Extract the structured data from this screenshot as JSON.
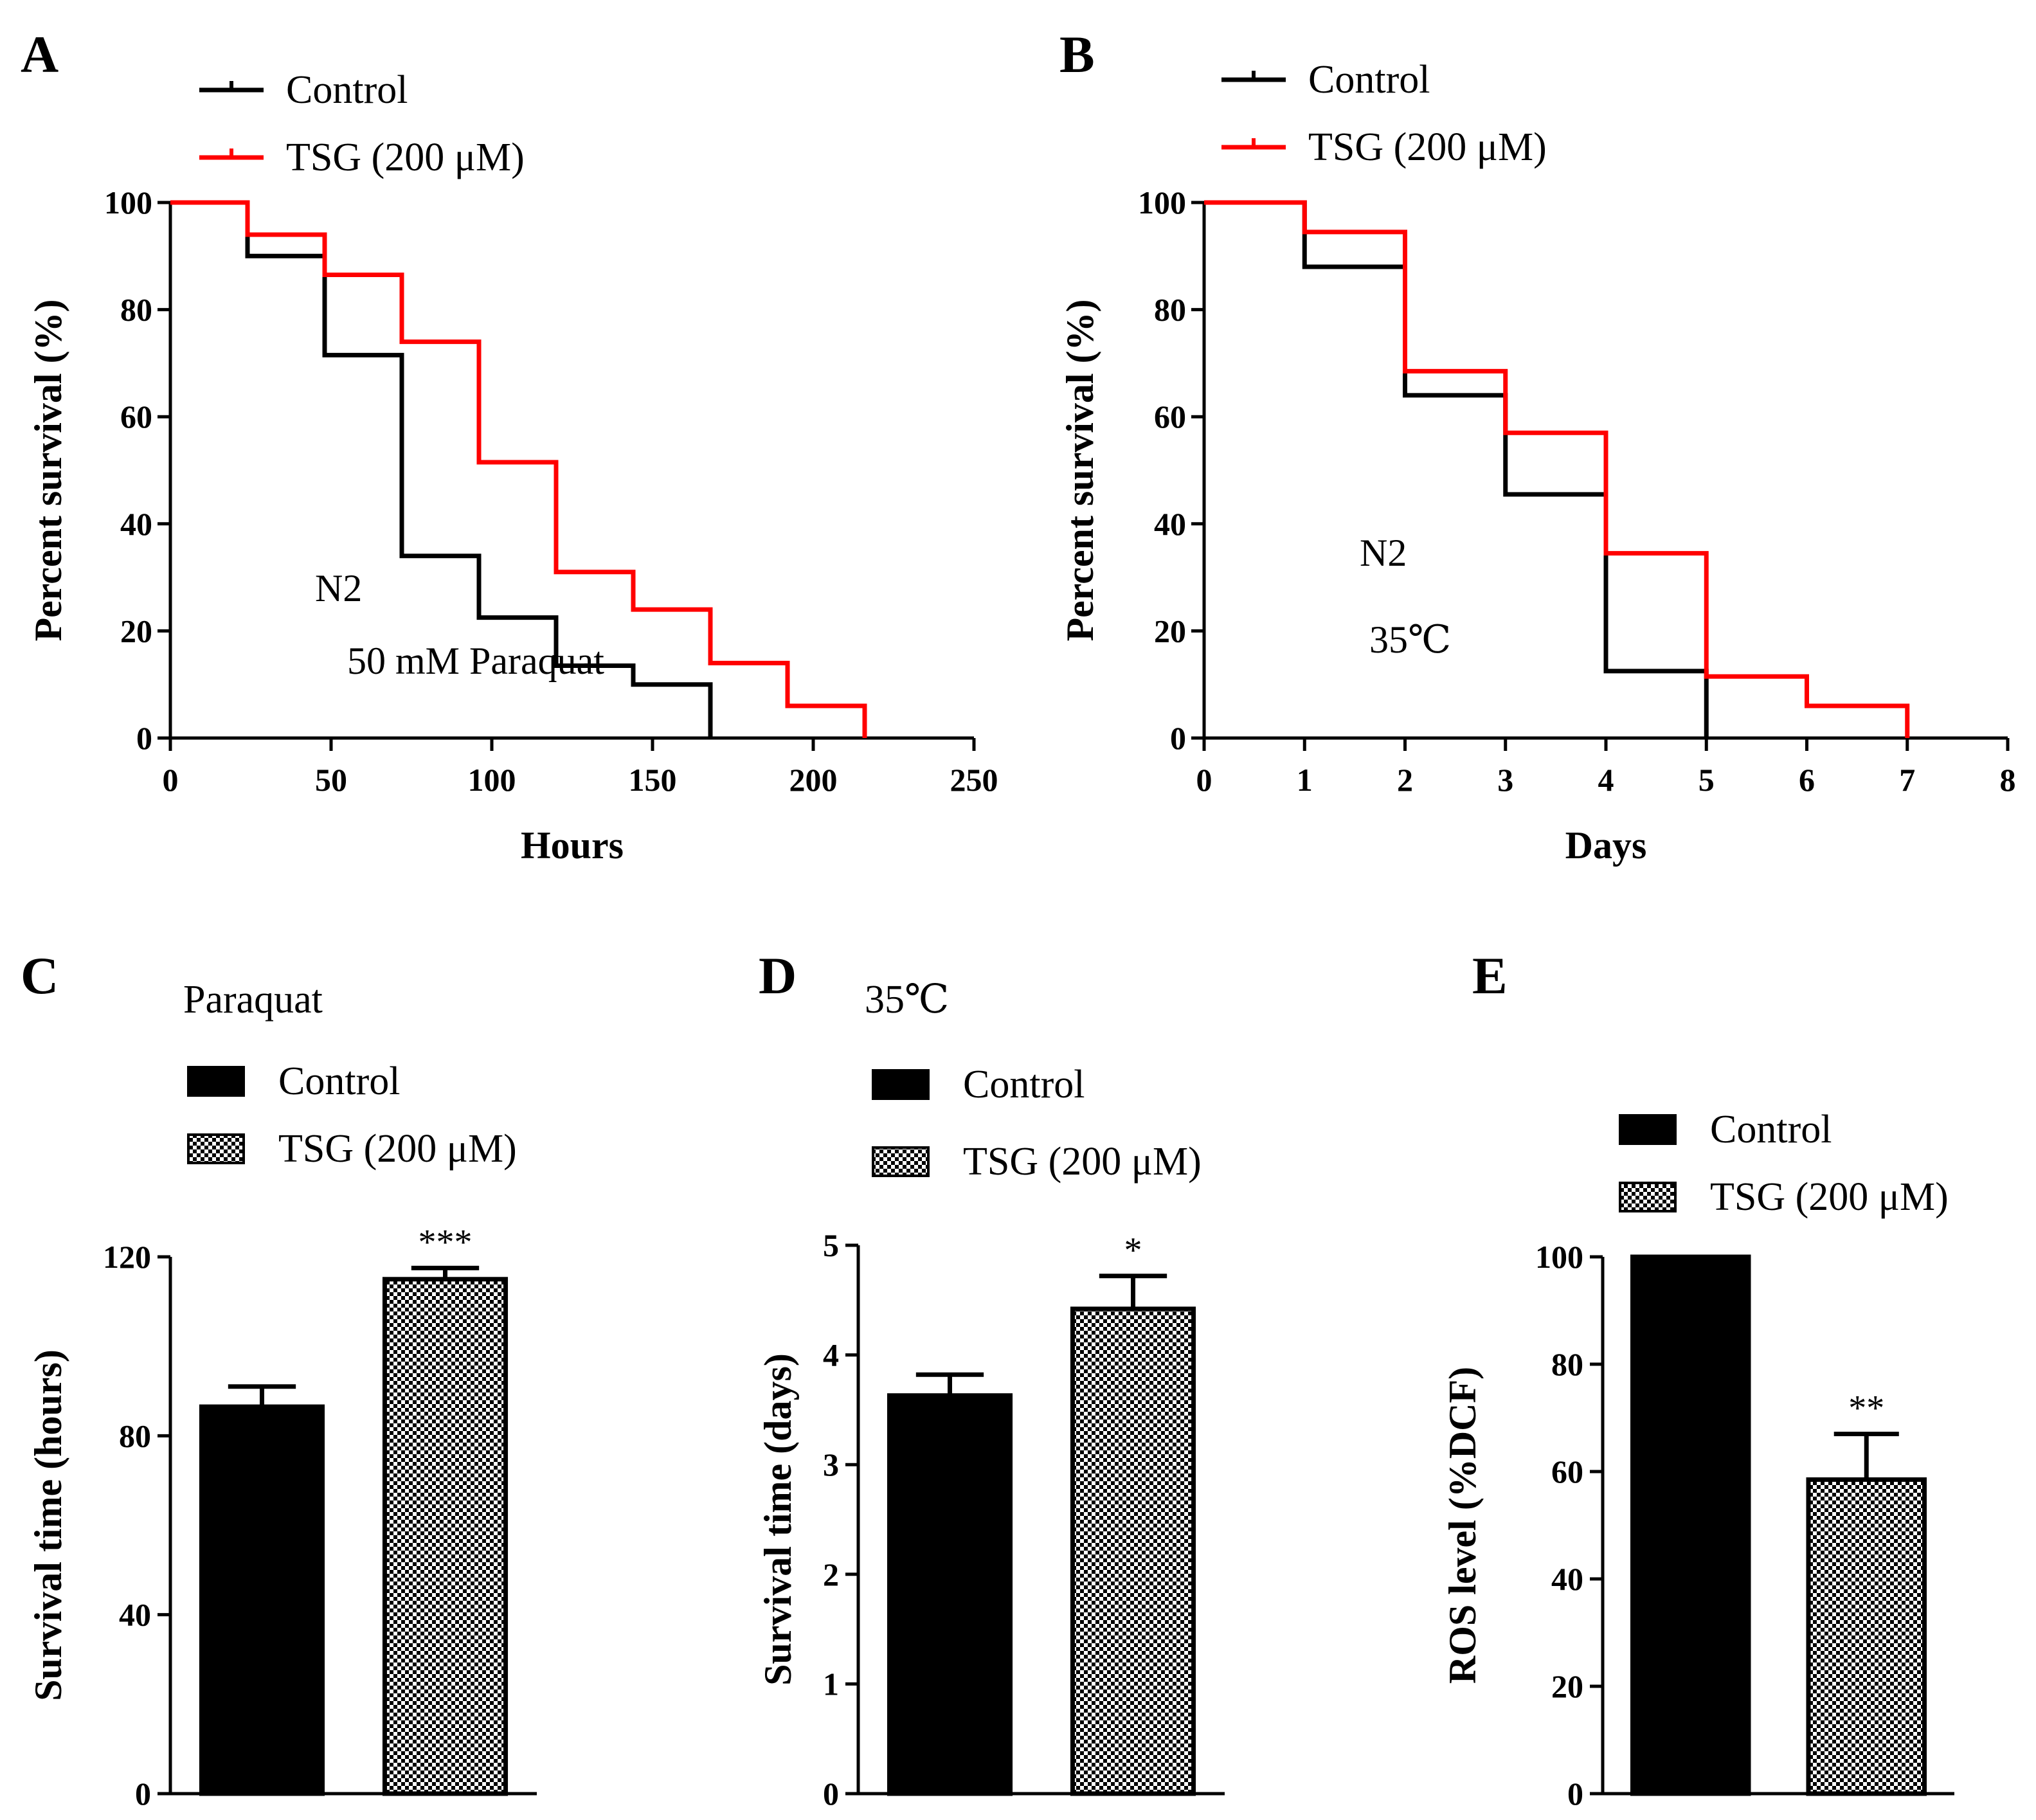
{
  "colors": {
    "control": "#000000",
    "tsg": "#ff0000",
    "axis": "#000000"
  },
  "chart_data": [
    {
      "panel": "A",
      "type": "line",
      "step": true,
      "title": "",
      "xlabel": "Hours",
      "ylabel": "Percent survival (%)",
      "xlim": [
        0,
        250
      ],
      "ylim": [
        0,
        100
      ],
      "xticks": [
        "0",
        "50",
        "100",
        "150",
        "200",
        "250"
      ],
      "yticks": [
        "0",
        "20",
        "40",
        "60",
        "80",
        "100"
      ],
      "legend": [
        "Control",
        "TSG (200 μM)"
      ],
      "annotations": [
        "N2",
        "50 mM Paraquat"
      ],
      "series": [
        {
          "name": "Control",
          "color": "#000000",
          "x": [
            0,
            24,
            48,
            72,
            96,
            120,
            144,
            168
          ],
          "y": [
            100,
            90,
            71.5,
            34,
            22.5,
            13.5,
            10,
            0
          ]
        },
        {
          "name": "TSG (200 μM)",
          "color": "#ff0000",
          "x": [
            0,
            24,
            48,
            72,
            96,
            120,
            144,
            168,
            192,
            216
          ],
          "y": [
            100,
            94,
            86.5,
            74,
            51.5,
            31,
            24,
            14,
            6,
            0
          ]
        }
      ]
    },
    {
      "panel": "B",
      "type": "line",
      "step": true,
      "title": "",
      "xlabel": "Days",
      "ylabel": "Percent survival (%)",
      "xlim": [
        0,
        8
      ],
      "ylim": [
        0,
        100
      ],
      "xticks": [
        "0",
        "1",
        "2",
        "3",
        "4",
        "5",
        "6",
        "7",
        "8"
      ],
      "yticks": [
        "0",
        "20",
        "40",
        "60",
        "80",
        "100"
      ],
      "legend": [
        "Control",
        "TSG (200 μM)"
      ],
      "annotations": [
        "N2",
        "35℃"
      ],
      "series": [
        {
          "name": "Control",
          "color": "#000000",
          "x": [
            0,
            1,
            2,
            3,
            4,
            5
          ],
          "y": [
            100,
            88,
            64,
            45.5,
            12.5,
            0
          ]
        },
        {
          "name": "TSG (200 μM)",
          "color": "#ff0000",
          "x": [
            0,
            1,
            2,
            3,
            4,
            5,
            6,
            7
          ],
          "y": [
            100,
            94.5,
            68.5,
            57,
            34.5,
            11.5,
            6,
            0
          ]
        }
      ]
    },
    {
      "panel": "C",
      "type": "bar",
      "title": "Paraquat",
      "xlabel": "",
      "ylabel": "Survival time (hours)",
      "ylim": [
        0,
        120
      ],
      "yticks": [
        "0",
        "40",
        "80",
        "120"
      ],
      "legend": [
        "Control",
        "TSG (200 μM)"
      ],
      "categories": [
        "Control",
        "TSG (200 μM)"
      ],
      "values": [
        86.5,
        115
      ],
      "errors": [
        4.5,
        2.5
      ],
      "significance": [
        "",
        "***"
      ]
    },
    {
      "panel": "D",
      "type": "bar",
      "title": "35℃",
      "xlabel": "",
      "ylabel": "Survival time (days)",
      "ylim": [
        0,
        5
      ],
      "yticks": [
        "0",
        "1",
        "2",
        "3",
        "4",
        "5"
      ],
      "legend": [
        "Control",
        "TSG (200 μM)"
      ],
      "categories": [
        "Control",
        "TSG (200 μM)"
      ],
      "values": [
        3.63,
        4.42
      ],
      "errors": [
        0.19,
        0.3
      ],
      "significance": [
        "",
        "*"
      ]
    },
    {
      "panel": "E",
      "type": "bar",
      "title": "",
      "xlabel": "",
      "ylabel": "ROS level (%DCF)",
      "ylim": [
        0,
        100
      ],
      "yticks": [
        "0",
        "20",
        "40",
        "60",
        "80",
        "100"
      ],
      "legend": [
        "Control",
        "TSG (200 μM)"
      ],
      "categories": [
        "Control",
        "TSG (200 μM)"
      ],
      "values": [
        100,
        58.5
      ],
      "errors": [
        0,
        8.5
      ],
      "significance": [
        "",
        "**"
      ]
    }
  ]
}
